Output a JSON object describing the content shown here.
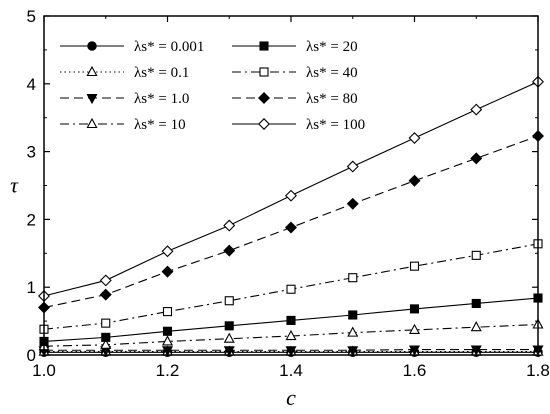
{
  "chart_data": {
    "type": "line",
    "xlabel": "c",
    "ylabel": "τ",
    "xlim": [
      1.0,
      1.8
    ],
    "ylim": [
      0,
      5
    ],
    "xticks": [
      "1.0",
      "1.2",
      "1.4",
      "1.6",
      "1.8"
    ],
    "yticks": [
      "0",
      "1",
      "2",
      "3",
      "4",
      "5"
    ],
    "grid": false,
    "legend_position": "top-left",
    "x": [
      1.0,
      1.1,
      1.2,
      1.3,
      1.4,
      1.5,
      1.6,
      1.7,
      1.8
    ],
    "series": [
      {
        "name": "λs* = 0.001",
        "marker": "circle-filled",
        "dash": "solid",
        "values": [
          0.04,
          0.04,
          0.04,
          0.04,
          0.04,
          0.04,
          0.04,
          0.04,
          0.04
        ]
      },
      {
        "name": "λs* = 0.1",
        "marker": "triangle-up-open",
        "dash": "dotted",
        "values": [
          0.05,
          0.05,
          0.05,
          0.05,
          0.05,
          0.05,
          0.05,
          0.05,
          0.05
        ]
      },
      {
        "name": "λs* = 1.0",
        "marker": "triangle-down-filled",
        "dash": "dashed",
        "values": [
          0.07,
          0.07,
          0.07,
          0.07,
          0.07,
          0.07,
          0.08,
          0.08,
          0.08
        ]
      },
      {
        "name": "λs* = 10",
        "marker": "triangle-up-open",
        "dash": "dashdot",
        "values": [
          0.13,
          0.15,
          0.2,
          0.24,
          0.28,
          0.33,
          0.37,
          0.41,
          0.45
        ]
      },
      {
        "name": "λs* = 20",
        "marker": "square-filled",
        "dash": "solid",
        "values": [
          0.2,
          0.26,
          0.35,
          0.43,
          0.51,
          0.59,
          0.68,
          0.76,
          0.84
        ]
      },
      {
        "name": "λs* = 40",
        "marker": "square-open",
        "dash": "dashdot",
        "values": [
          0.38,
          0.47,
          0.64,
          0.8,
          0.97,
          1.14,
          1.31,
          1.47,
          1.64
        ]
      },
      {
        "name": "λs* = 80",
        "marker": "diamond-filled",
        "dash": "dashed",
        "values": [
          0.7,
          0.89,
          1.23,
          1.54,
          1.88,
          2.23,
          2.57,
          2.9,
          3.23
        ]
      },
      {
        "name": "λs* = 100",
        "marker": "diamond-open",
        "dash": "solid",
        "values": [
          0.87,
          1.1,
          1.53,
          1.91,
          2.35,
          2.78,
          3.2,
          3.62,
          4.03
        ]
      }
    ]
  }
}
